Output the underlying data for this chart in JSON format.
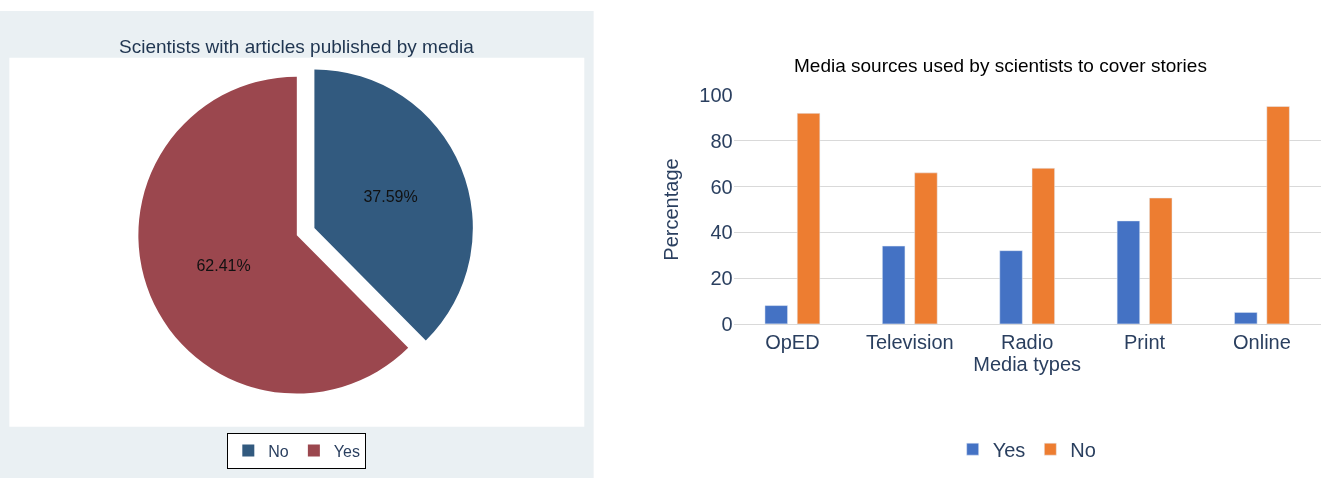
{
  "chart_data": [
    {
      "type": "pie",
      "title": "Scientists with articles published by media",
      "categories": [
        "No",
        "Yes"
      ],
      "values": [
        37.59,
        62.41
      ],
      "colors": [
        "#325a7f",
        "#9b474e"
      ],
      "value_labels": [
        "37.59%",
        "62.41%"
      ],
      "legend": "bottom"
    },
    {
      "type": "bar",
      "title": "Media sources used by scientists to cover stories",
      "xlabel": "Media types",
      "ylabel": "Percentage",
      "categories": [
        "OpED",
        "Television",
        "Radio",
        "Print",
        "Online"
      ],
      "series": [
        {
          "name": "Yes",
          "color": "#4472c4",
          "values": [
            8,
            34,
            32,
            45,
            5
          ]
        },
        {
          "name": "No",
          "color": "#ed7d31",
          "values": [
            92,
            66,
            68,
            55,
            95
          ]
        }
      ],
      "ylim": [
        0,
        100
      ],
      "yticks": [
        0,
        20,
        40,
        60,
        80,
        100
      ],
      "grid": "y",
      "legend": "bottom"
    }
  ]
}
